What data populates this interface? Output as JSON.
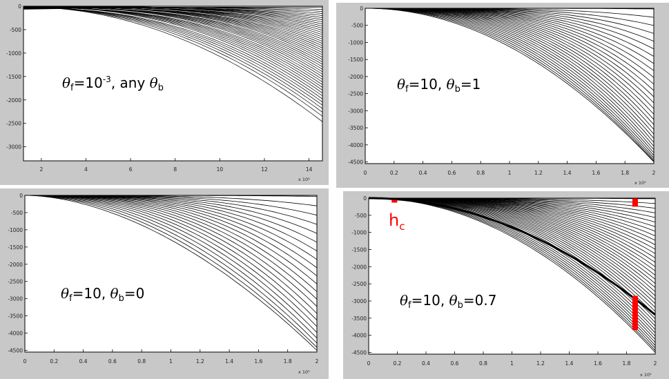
{
  "chart_data": [
    {
      "type": "line",
      "annotation": {
        "pre": "θ",
        "sub": "f",
        "mid": "=10",
        "sup": "-3",
        "tail": ", any ",
        "pre2": "θ",
        "sub2": "b",
        "val2": ""
      },
      "xlim": [
        1.2,
        14.6
      ],
      "ylim": [
        -3300,
        0
      ],
      "x_ticks": [
        2,
        4,
        6,
        8,
        10,
        12,
        14
      ],
      "x_tick_labels": [
        "2",
        "4",
        "6",
        "8",
        "10",
        "12",
        "14"
      ],
      "y_ticks": [
        0,
        -500,
        -1000,
        -1500,
        -2000,
        -2500,
        -3000
      ],
      "y_tick_labels": [
        "0",
        "-500",
        "-1000",
        "-1500",
        "-2000",
        "-2500",
        "-3000"
      ],
      "x_exponent": "x 10⁴",
      "curves": {
        "count": 46,
        "y_end_min": -2450,
        "y_end_max": -10,
        "dense_start_x": 1.2,
        "dense_end_x": 7.5
      },
      "grid": false
    },
    {
      "type": "line",
      "annotation": {
        "pre": "θ",
        "sub": "f",
        "mid": "=10, ",
        "sup": "",
        "tail": "",
        "pre2": "θ",
        "sub2": "b",
        "val2": "=1"
      },
      "xlim": [
        0,
        2
      ],
      "ylim": [
        -4550,
        0
      ],
      "x_ticks": [
        0,
        0.2,
        0.4,
        0.6,
        0.8,
        1,
        1.2,
        1.4,
        1.6,
        1.8,
        2
      ],
      "x_tick_labels": [
        "0",
        "0.2",
        "0.4",
        "0.6",
        "0.8",
        "1",
        "1.2",
        "1.4",
        "1.6",
        "1.8",
        "2"
      ],
      "y_ticks": [
        0,
        -500,
        -1000,
        -1500,
        -2000,
        -2500,
        -3000,
        -3500,
        -4000,
        -4500
      ],
      "y_tick_labels": [
        "0",
        "-500",
        "-1000",
        "-1500",
        "-2000",
        "-2500",
        "-3000",
        "-3500",
        "-4000",
        "-4500"
      ],
      "x_exponent": "x 10⁵",
      "curves": {
        "count": 30,
        "y_end_min": -4500,
        "y_end_max": -20
      },
      "grid": false
    },
    {
      "type": "line",
      "annotation": {
        "pre": "θ",
        "sub": "f",
        "mid": "=10, ",
        "sup": "",
        "tail": "",
        "pre2": "θ",
        "sub2": "b",
        "val2": "=0"
      },
      "xlim": [
        0,
        2
      ],
      "ylim": [
        -4550,
        0
      ],
      "x_ticks": [
        0,
        0.2,
        0.4,
        0.6,
        0.8,
        1,
        1.2,
        1.4,
        1.6,
        1.8,
        2
      ],
      "x_tick_labels": [
        "0",
        "0.2",
        "0.4",
        "0.6",
        "0.8",
        "1",
        "1.2",
        "1.4",
        "1.6",
        "1.8",
        "2"
      ],
      "y_ticks": [
        0,
        -500,
        -1000,
        -1500,
        -2000,
        -2500,
        -3000,
        -3500,
        -4000,
        -4500
      ],
      "y_tick_labels": [
        "0",
        "-500",
        "-1000",
        "-1500",
        "-2000",
        "-2500",
        "-3000",
        "-3500",
        "-4000",
        "-4500"
      ],
      "x_exponent": "x 10⁵",
      "curves": {
        "count": 22,
        "y_end_min": -4500,
        "y_end_max": -30
      },
      "grid": false
    },
    {
      "type": "line",
      "annotation": {
        "pre": "θ",
        "sub": "f",
        "mid": "=10, ",
        "sup": "",
        "tail": "",
        "pre2": "θ",
        "sub2": "b",
        "val2": "=0.7"
      },
      "xlim": [
        0,
        2
      ],
      "ylim": [
        -4550,
        0
      ],
      "x_ticks": [
        0,
        0.2,
        0.4,
        0.6,
        0.8,
        1,
        1.2,
        1.4,
        1.6,
        1.8,
        2
      ],
      "x_tick_labels": [
        "0",
        "0.2",
        "0.4",
        "0.6",
        "0.8",
        "1",
        "1.2",
        "1.4",
        "1.6",
        "1.8",
        "2"
      ],
      "y_ticks": [
        0,
        -500,
        -1000,
        -1500,
        -2000,
        -2500,
        -3000,
        -3500,
        -4000,
        -4500
      ],
      "y_tick_labels": [
        "0",
        "-500",
        "-1000",
        "-1500",
        "-2000",
        "-2500",
        "-3000",
        "-3500",
        "-4000",
        "-4500"
      ],
      "x_exponent": "x 10⁵",
      "curves": {
        "count": 40,
        "y_end_min": -4500,
        "y_end_max": -20
      },
      "hc_label": {
        "main": "h",
        "sub": "c"
      },
      "markers": [
        {
          "x": 0.18,
          "y0": -50,
          "y1": -100
        },
        {
          "x": 1.86,
          "y0": -10,
          "y1": -250
        },
        {
          "x": 1.86,
          "y0": -2850,
          "y1": -3850
        }
      ],
      "marker_color": "#ff0000",
      "grid": false
    }
  ]
}
